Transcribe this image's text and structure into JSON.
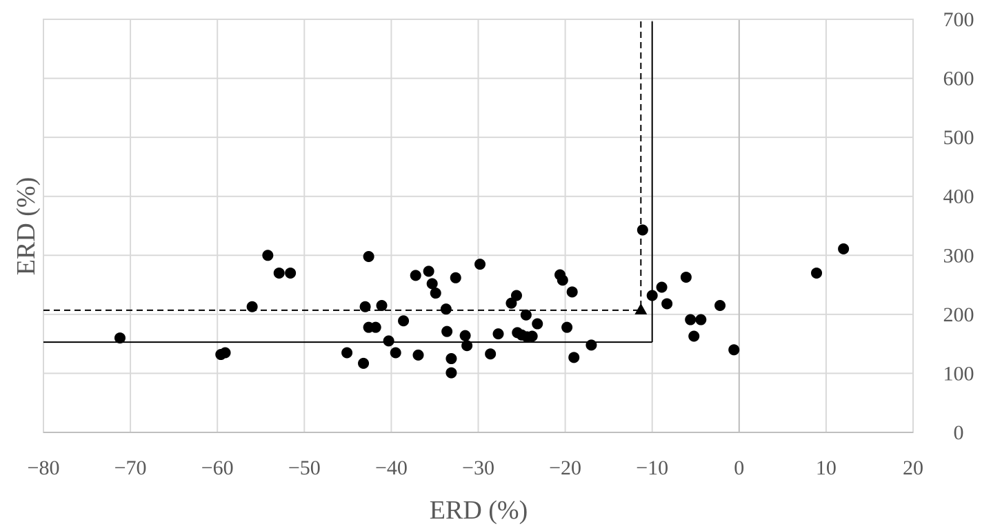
{
  "chart_data": {
    "type": "scatter",
    "xlabel": "ERD (%)",
    "ylabel": "ERD (%)",
    "xlim": [
      -80,
      20
    ],
    "ylim": [
      0,
      700
    ],
    "xticks": [
      -80,
      -70,
      -60,
      -50,
      -40,
      -30,
      -20,
      -10,
      0,
      10,
      20
    ],
    "yticks": [
      0,
      100,
      200,
      300,
      400,
      500,
      600,
      700
    ],
    "x_tick_labels": [
      "−80",
      "−70",
      "−60",
      "−50",
      "−40",
      "−30",
      "−20",
      "−10",
      "0",
      "10",
      "20"
    ],
    "y_tick_labels": [
      "0",
      "100",
      "200",
      "300",
      "400",
      "500",
      "600",
      "700"
    ],
    "y_axis_position": "right",
    "grid": true,
    "marker_color": "#000000",
    "points": [
      {
        "x": -71.2,
        "y": 160
      },
      {
        "x": -59.6,
        "y": 132
      },
      {
        "x": -59.1,
        "y": 135
      },
      {
        "x": -56.0,
        "y": 213
      },
      {
        "x": -54.2,
        "y": 300
      },
      {
        "x": -52.9,
        "y": 270
      },
      {
        "x": -51.6,
        "y": 270
      },
      {
        "x": -45.1,
        "y": 135
      },
      {
        "x": -43.2,
        "y": 117
      },
      {
        "x": -43.0,
        "y": 213
      },
      {
        "x": -42.6,
        "y": 178
      },
      {
        "x": -42.6,
        "y": 298
      },
      {
        "x": -41.8,
        "y": 178
      },
      {
        "x": -41.1,
        "y": 215
      },
      {
        "x": -40.3,
        "y": 155
      },
      {
        "x": -39.5,
        "y": 135
      },
      {
        "x": -38.6,
        "y": 189
      },
      {
        "x": -37.2,
        "y": 266
      },
      {
        "x": -36.9,
        "y": 131
      },
      {
        "x": -35.7,
        "y": 273
      },
      {
        "x": -35.3,
        "y": 252
      },
      {
        "x": -34.9,
        "y": 236
      },
      {
        "x": -33.7,
        "y": 209
      },
      {
        "x": -33.6,
        "y": 171
      },
      {
        "x": -33.1,
        "y": 125
      },
      {
        "x": -33.1,
        "y": 101
      },
      {
        "x": -32.6,
        "y": 262
      },
      {
        "x": -31.5,
        "y": 164
      },
      {
        "x": -31.3,
        "y": 147
      },
      {
        "x": -29.8,
        "y": 285
      },
      {
        "x": -28.6,
        "y": 133
      },
      {
        "x": -27.7,
        "y": 167
      },
      {
        "x": -26.2,
        "y": 219
      },
      {
        "x": -25.6,
        "y": 232
      },
      {
        "x": -25.5,
        "y": 169
      },
      {
        "x": -25.0,
        "y": 165
      },
      {
        "x": -24.5,
        "y": 199
      },
      {
        "x": -24.4,
        "y": 162
      },
      {
        "x": -23.8,
        "y": 163
      },
      {
        "x": -23.2,
        "y": 184
      },
      {
        "x": -20.6,
        "y": 267
      },
      {
        "x": -20.3,
        "y": 258
      },
      {
        "x": -19.8,
        "y": 178
      },
      {
        "x": -19.2,
        "y": 238
      },
      {
        "x": -19.0,
        "y": 127
      },
      {
        "x": -17.0,
        "y": 148
      },
      {
        "x": -11.1,
        "y": 343
      },
      {
        "x": -10.0,
        "y": 232
      },
      {
        "x": -8.9,
        "y": 246
      },
      {
        "x": -8.3,
        "y": 218
      },
      {
        "x": -6.1,
        "y": 263
      },
      {
        "x": -5.6,
        "y": 191
      },
      {
        "x": -5.2,
        "y": 163
      },
      {
        "x": -4.4,
        "y": 191
      },
      {
        "x": -2.2,
        "y": 215
      },
      {
        "x": -0.6,
        "y": 140
      },
      {
        "x": 8.9,
        "y": 270
      },
      {
        "x": 12.0,
        "y": 311
      }
    ],
    "highlight_point": {
      "x": -11.3,
      "y": 207,
      "marker": "triangle"
    },
    "reference_lines": [
      {
        "style": "solid",
        "x": -10.0,
        "y": 153
      },
      {
        "style": "dashed",
        "x": -11.3,
        "y": 207
      }
    ]
  }
}
